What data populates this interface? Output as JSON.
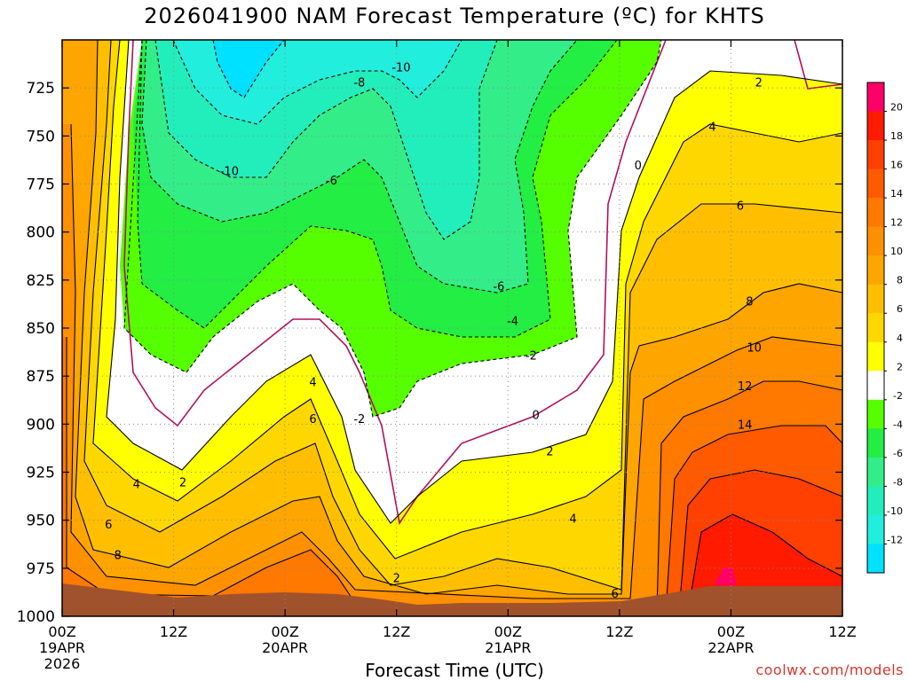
{
  "title": "2026041900 NAM Forecast Temperature (ºC) for KHTS",
  "xlabel": "Forecast Time (UTC)",
  "credit": "coolwx.com/models",
  "chart_data": {
    "type": "heatmap",
    "title": "2026041900 NAM Forecast Temperature (ºC) for KHTS",
    "xlabel": "Forecast Time (UTC)",
    "ylabel": "",
    "x_ticks": [
      {
        "top": "00Z",
        "mid": "19APR",
        "bot": "2026"
      },
      {
        "top": "12Z",
        "mid": "",
        "bot": ""
      },
      {
        "top": "00Z",
        "mid": "20APR",
        "bot": ""
      },
      {
        "top": "12Z",
        "mid": "",
        "bot": ""
      },
      {
        "top": "00Z",
        "mid": "21APR",
        "bot": ""
      },
      {
        "top": "12Z",
        "mid": "",
        "bot": ""
      },
      {
        "top": "00Z",
        "mid": "22APR",
        "bot": ""
      },
      {
        "top": "12Z",
        "mid": "",
        "bot": ""
      }
    ],
    "x_hours": [
      0,
      12,
      24,
      36,
      48,
      60,
      72,
      84
    ],
    "y_ticks": [
      725,
      750,
      775,
      800,
      825,
      850,
      875,
      900,
      925,
      950,
      975,
      1000
    ],
    "ylim": [
      1000,
      700
    ],
    "xlim": [
      0,
      84
    ],
    "grid": true,
    "colorbar": {
      "labels": [
        "20",
        "18",
        "16",
        "14",
        "12",
        "10",
        "8",
        "6",
        "4",
        "2",
        "-2",
        "-4",
        "-6",
        "-8",
        "-10",
        "-12"
      ],
      "colors": [
        "#ff0066",
        "#ff1a00",
        "#ff4000",
        "#ff5a00",
        "#ff7800",
        "#ff9000",
        "#ffa500",
        "#ffbf00",
        "#ffd700",
        "#ffff00",
        "#ffffff",
        "#55ff00",
        "#22ee44",
        "#33ee88",
        "#22eebb",
        "#22eedd",
        "#00e0ff"
      ]
    },
    "contour_labels": [
      {
        "text": "-10",
        "h": 36.5,
        "p": 714
      },
      {
        "text": "-8",
        "h": 32,
        "p": 722
      },
      {
        "text": "-10",
        "h": 18,
        "p": 768
      },
      {
        "text": "-6",
        "h": 29,
        "p": 773
      },
      {
        "text": "2",
        "h": 75,
        "p": 722
      },
      {
        "text": "4",
        "h": 70,
        "p": 745
      },
      {
        "text": "0",
        "h": 62,
        "p": 765
      },
      {
        "text": "6",
        "h": 73,
        "p": 786
      },
      {
        "text": "-6",
        "h": 47,
        "p": 828
      },
      {
        "text": "-4",
        "h": 48.5,
        "p": 846
      },
      {
        "text": "8",
        "h": 74,
        "p": 836
      },
      {
        "text": "-2",
        "h": 50.5,
        "p": 864
      },
      {
        "text": "10",
        "h": 74.5,
        "p": 860
      },
      {
        "text": "12",
        "h": 73.5,
        "p": 880
      },
      {
        "text": "4",
        "h": 27,
        "p": 878
      },
      {
        "text": "0",
        "h": 51,
        "p": 895
      },
      {
        "text": "-2",
        "h": 32,
        "p": 897
      },
      {
        "text": "6",
        "h": 27,
        "p": 897
      },
      {
        "text": "14",
        "h": 73.5,
        "p": 900
      },
      {
        "text": "2",
        "h": 52.5,
        "p": 914
      },
      {
        "text": "2",
        "h": 13,
        "p": 930
      },
      {
        "text": "4",
        "h": 8,
        "p": 931
      },
      {
        "text": "4",
        "h": 55,
        "p": 949
      },
      {
        "text": "6",
        "h": 5,
        "p": 952
      },
      {
        "text": "8",
        "h": 6,
        "p": 968
      },
      {
        "text": "2",
        "h": 36,
        "p": 980
      },
      {
        "text": "6",
        "h": 59.5,
        "p": 988
      }
    ]
  }
}
